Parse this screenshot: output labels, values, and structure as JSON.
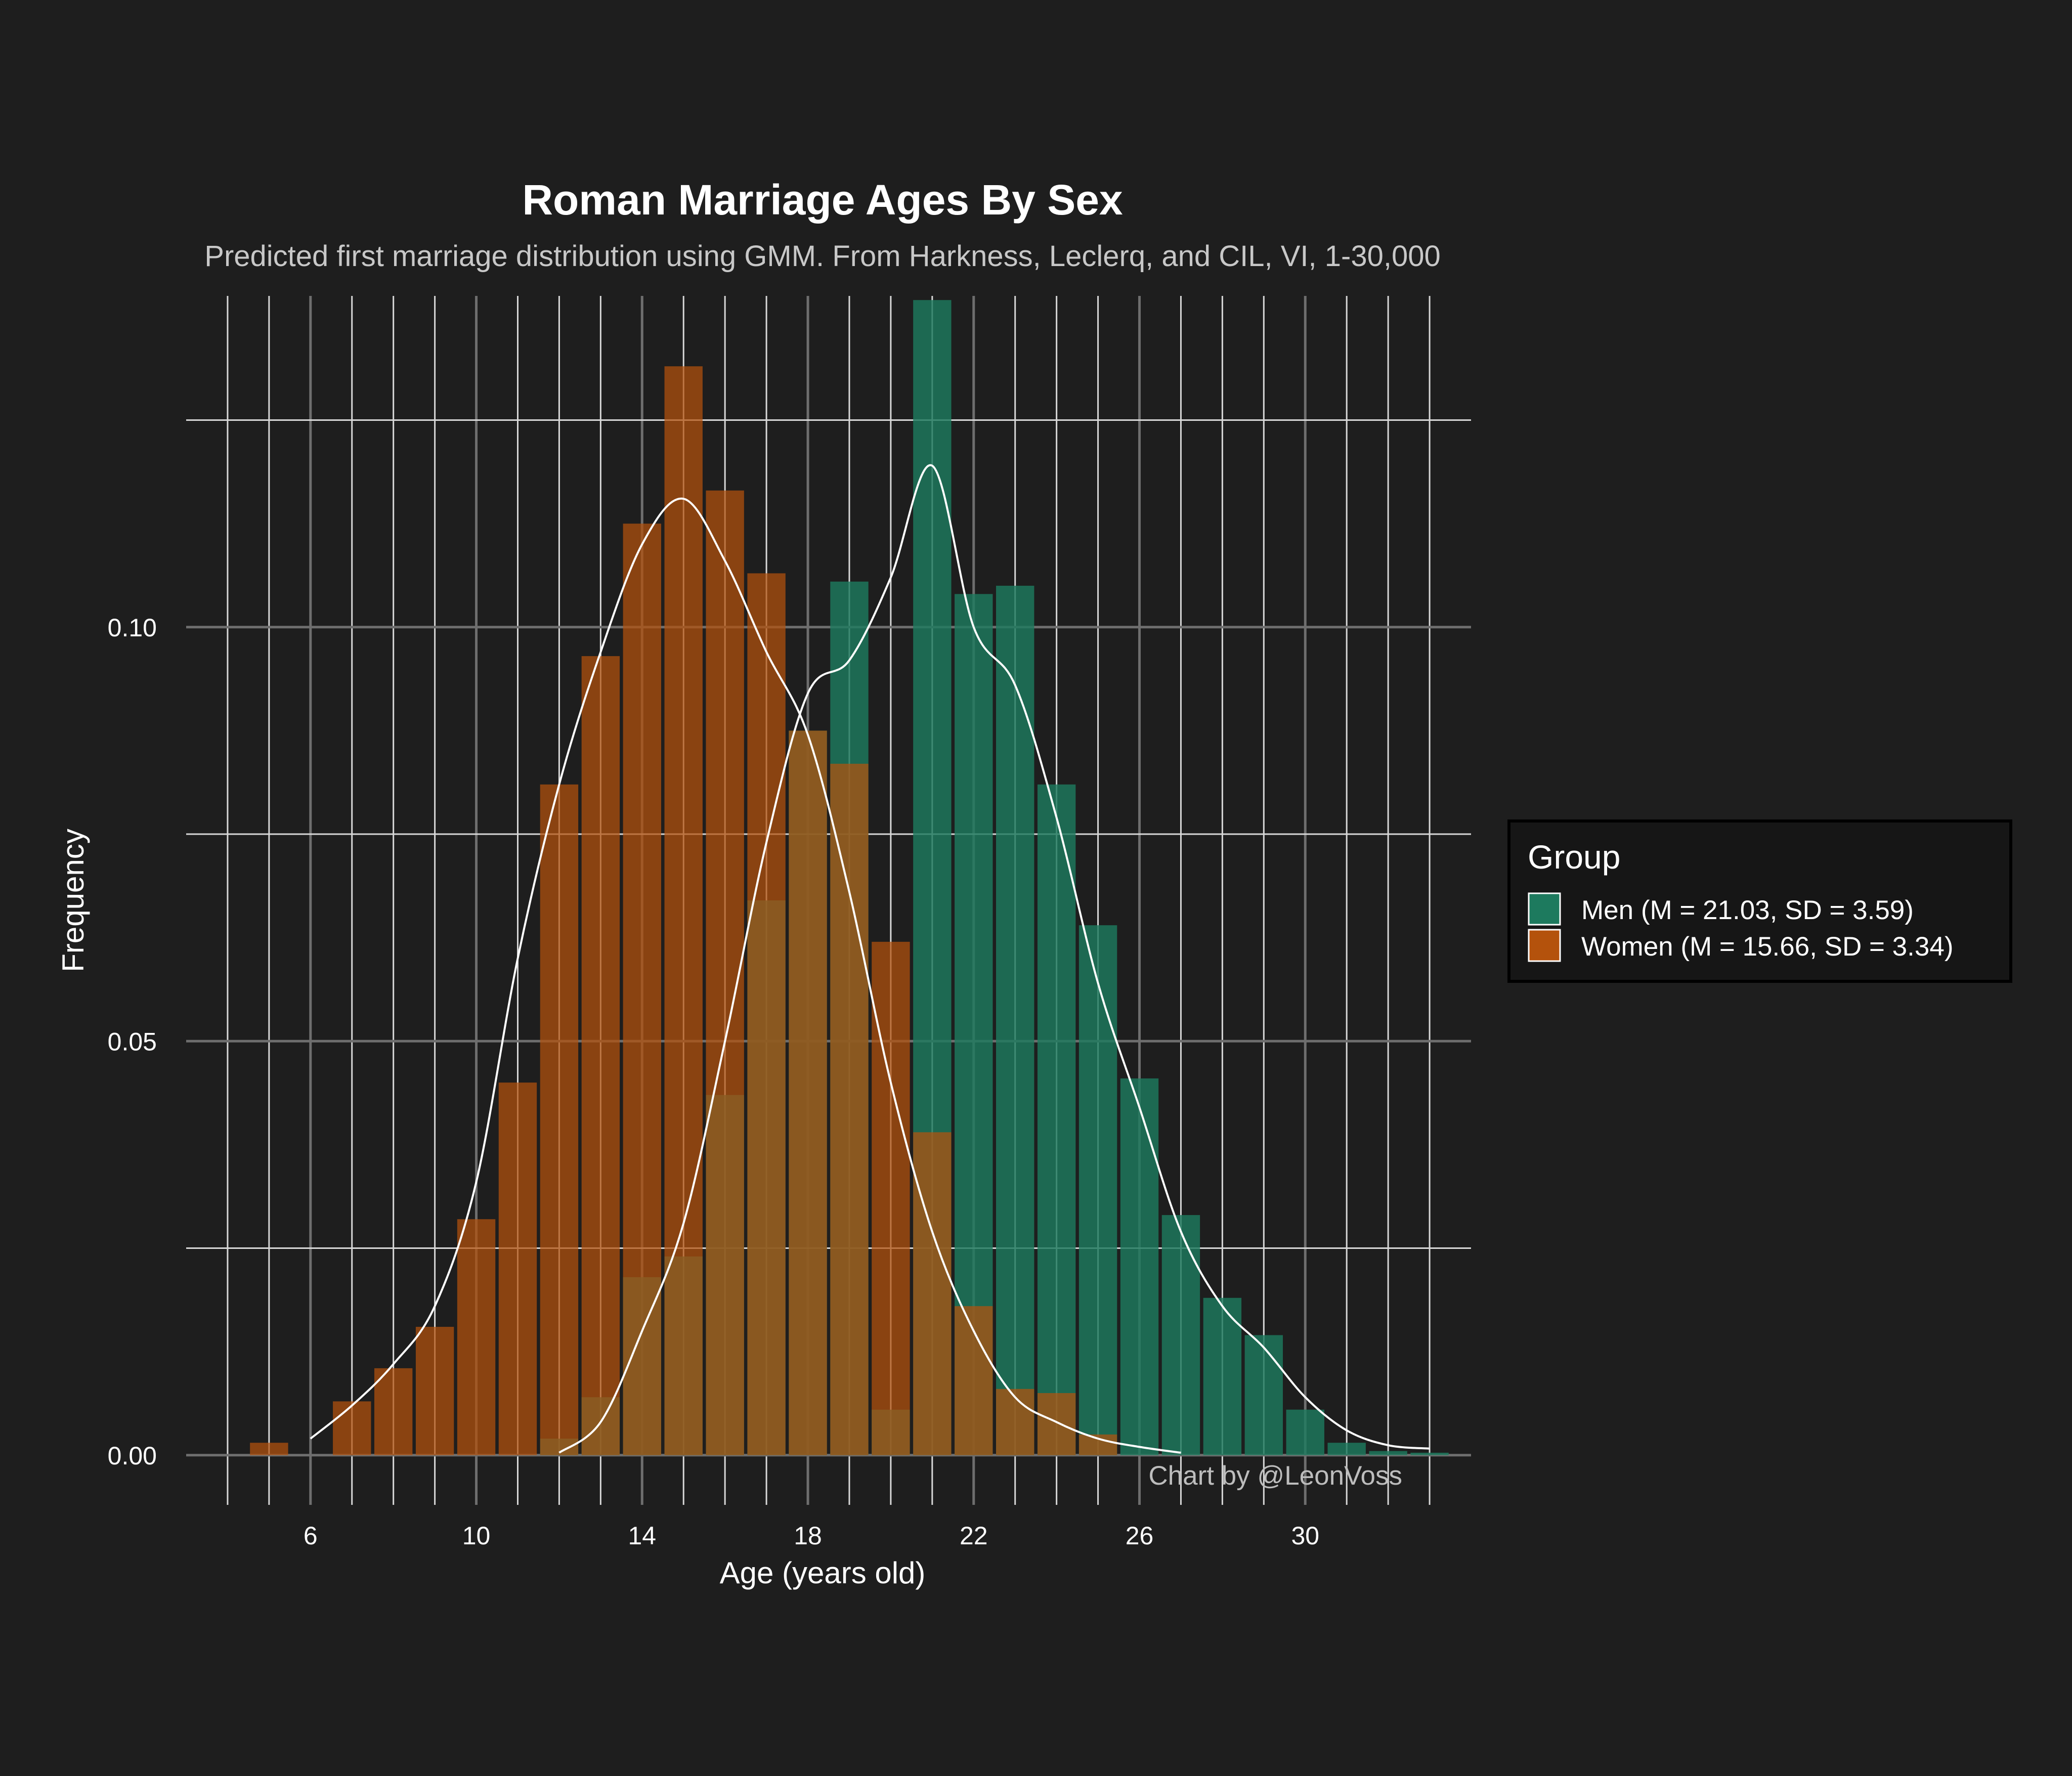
{
  "chart_data": {
    "type": "histogram",
    "title": "Roman Marriage Ages By Sex",
    "subtitle": "Predicted first marriage distribution using GMM. From Harkness, Leclerq, and CIL, VI, 1-30,000",
    "xlabel": "Age (years old)",
    "ylabel": "Frequency",
    "xlim": [
      3,
      34
    ],
    "ylim": [
      -0.006,
      0.14
    ],
    "x_ticks": [
      6,
      10,
      14,
      18,
      22,
      26,
      30
    ],
    "x_tick_labels": [
      "6",
      "10",
      "14",
      "18",
      "22",
      "26",
      "30"
    ],
    "y_ticks": [
      0,
      0.05,
      0.1
    ],
    "y_tick_labels": [
      "0.00",
      "0.05",
      "0.10"
    ],
    "grid": true,
    "legend": {
      "title": "Group",
      "position": "right"
    },
    "caption": "Chart by @LeonVoss",
    "bin_width": 0.92,
    "series": [
      {
        "name": "Men (M = 21.03, SD = 3.59)",
        "color": "#1d7a5e",
        "bins": [
          {
            "x": 12,
            "y": 0.002
          },
          {
            "x": 13,
            "y": 0.007
          },
          {
            "x": 14,
            "y": 0.0215
          },
          {
            "x": 15,
            "y": 0.024
          },
          {
            "x": 16,
            "y": 0.0435
          },
          {
            "x": 17,
            "y": 0.067
          },
          {
            "x": 18,
            "y": 0.0875
          },
          {
            "x": 19,
            "y": 0.1055
          },
          {
            "x": 20,
            "y": 0.0055
          },
          {
            "x": 21,
            "y": 0.1395
          },
          {
            "x": 22,
            "y": 0.104
          },
          {
            "x": 23,
            "y": 0.105
          },
          {
            "x": 24,
            "y": 0.081
          },
          {
            "x": 25,
            "y": 0.064
          },
          {
            "x": 26,
            "y": 0.0455
          },
          {
            "x": 27,
            "y": 0.029
          },
          {
            "x": 28,
            "y": 0.019
          },
          {
            "x": 29,
            "y": 0.0145
          },
          {
            "x": 30,
            "y": 0.0055
          },
          {
            "x": 31,
            "y": 0.0015
          },
          {
            "x": 32,
            "y": 0.0005
          },
          {
            "x": 33,
            "y": 0.0003
          }
        ],
        "density": [
          [
            12,
            0.0003
          ],
          [
            13,
            0.004
          ],
          [
            14,
            0.015
          ],
          [
            15,
            0.028
          ],
          [
            16,
            0.05
          ],
          [
            17,
            0.074
          ],
          [
            18,
            0.092
          ],
          [
            19,
            0.096
          ],
          [
            20,
            0.106
          ],
          [
            21,
            0.1195
          ],
          [
            22,
            0.1
          ],
          [
            23,
            0.093
          ],
          [
            24,
            0.077
          ],
          [
            25,
            0.057
          ],
          [
            26,
            0.042
          ],
          [
            27,
            0.027
          ],
          [
            28,
            0.018
          ],
          [
            29,
            0.013
          ],
          [
            30,
            0.007
          ],
          [
            31,
            0.003
          ],
          [
            32,
            0.0012
          ],
          [
            33,
            0.0008
          ]
        ]
      },
      {
        "name": "Women (M = 15.66, SD = 3.34)",
        "color": "#b4520c",
        "bins": [
          {
            "x": 5,
            "y": 0.0015
          },
          {
            "x": 7,
            "y": 0.0065
          },
          {
            "x": 8,
            "y": 0.0105
          },
          {
            "x": 9,
            "y": 0.0155
          },
          {
            "x": 10,
            "y": 0.0285
          },
          {
            "x": 11,
            "y": 0.045
          },
          {
            "x": 12,
            "y": 0.081
          },
          {
            "x": 13,
            "y": 0.0965
          },
          {
            "x": 14,
            "y": 0.1125
          },
          {
            "x": 15,
            "y": 0.1315
          },
          {
            "x": 16,
            "y": 0.1165
          },
          {
            "x": 17,
            "y": 0.1065
          },
          {
            "x": 18,
            "y": 0.0875
          },
          {
            "x": 19,
            "y": 0.0835
          },
          {
            "x": 20,
            "y": 0.062
          },
          {
            "x": 21,
            "y": 0.039
          },
          {
            "x": 22,
            "y": 0.018
          },
          {
            "x": 23,
            "y": 0.008
          },
          {
            "x": 24,
            "y": 0.0075
          },
          {
            "x": 25,
            "y": 0.0025
          }
        ],
        "density": [
          [
            6,
            0.002
          ],
          [
            7,
            0.006
          ],
          [
            8,
            0.011
          ],
          [
            9,
            0.018
          ],
          [
            10,
            0.033
          ],
          [
            11,
            0.06
          ],
          [
            12,
            0.081
          ],
          [
            13,
            0.097
          ],
          [
            14,
            0.11
          ],
          [
            15,
            0.1155
          ],
          [
            16,
            0.108
          ],
          [
            17,
            0.097
          ],
          [
            18,
            0.087
          ],
          [
            19,
            0.068
          ],
          [
            20,
            0.045
          ],
          [
            21,
            0.027
          ],
          [
            22,
            0.015
          ],
          [
            23,
            0.007
          ],
          [
            24,
            0.004
          ],
          [
            25,
            0.002
          ],
          [
            26,
            0.001
          ],
          [
            27,
            0.0003
          ]
        ]
      }
    ]
  }
}
